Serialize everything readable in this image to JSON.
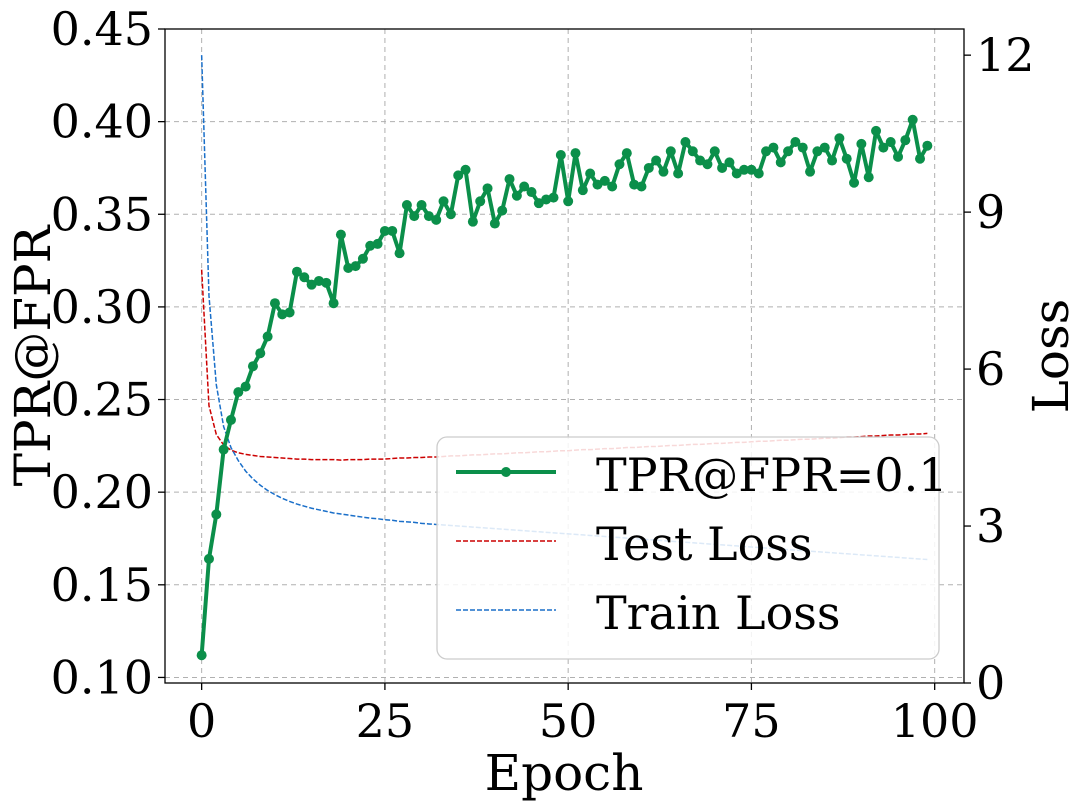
{
  "chart_data": {
    "type": "line",
    "title": "",
    "xlabel": "Epoch",
    "ylabel": "TPR@FPR",
    "y2label": "Loss",
    "xlim": [
      -5,
      104
    ],
    "ylim": [
      0.097,
      0.45
    ],
    "y2lim": [
      0,
      12.5
    ],
    "grid": true,
    "legend_location": "lower-right",
    "x_ticks": [
      0,
      25,
      50,
      75,
      100
    ],
    "x_tick_labels": [
      "0",
      "25",
      "50",
      "75",
      "100"
    ],
    "y_ticks": [
      0.1,
      0.15,
      0.2,
      0.25,
      0.3,
      0.35,
      0.4,
      0.45
    ],
    "y_tick_labels": [
      "0.10",
      "0.15",
      "0.20",
      "0.25",
      "0.30",
      "0.35",
      "0.40",
      "0.45"
    ],
    "y2_ticks": [
      0,
      3,
      6,
      9,
      12
    ],
    "y2_tick_labels": [
      "0",
      "3",
      "6",
      "9",
      "12"
    ],
    "series": [
      {
        "name": "TPR@FPR=0.1",
        "axis": "left",
        "color": "#0b8f4a",
        "style": "solid-marker",
        "x_start": 0,
        "values": [
          0.112,
          0.164,
          0.188,
          0.223,
          0.239,
          0.254,
          0.257,
          0.268,
          0.275,
          0.284,
          0.302,
          0.296,
          0.297,
          0.319,
          0.316,
          0.312,
          0.314,
          0.313,
          0.302,
          0.339,
          0.321,
          0.322,
          0.326,
          0.333,
          0.334,
          0.341,
          0.341,
          0.329,
          0.355,
          0.349,
          0.355,
          0.349,
          0.347,
          0.357,
          0.35,
          0.371,
          0.374,
          0.346,
          0.357,
          0.364,
          0.345,
          0.352,
          0.369,
          0.36,
          0.365,
          0.362,
          0.356,
          0.358,
          0.359,
          0.382,
          0.357,
          0.383,
          0.363,
          0.372,
          0.366,
          0.368,
          0.365,
          0.377,
          0.383,
          0.366,
          0.365,
          0.375,
          0.379,
          0.373,
          0.384,
          0.372,
          0.389,
          0.384,
          0.379,
          0.377,
          0.384,
          0.375,
          0.378,
          0.372,
          0.374,
          0.374,
          0.372,
          0.384,
          0.386,
          0.378,
          0.384,
          0.389,
          0.386,
          0.373,
          0.384,
          0.386,
          0.379,
          0.391,
          0.38,
          0.367,
          0.388,
          0.37,
          0.395,
          0.386,
          0.389,
          0.381,
          0.39,
          0.401,
          0.38,
          0.387
        ]
      },
      {
        "name": "Test Loss",
        "axis": "right",
        "color": "#cc0000",
        "style": "dashed",
        "x_start": 0,
        "values": [
          7.9,
          5.3,
          4.75,
          4.55,
          4.45,
          4.4,
          4.37,
          4.35,
          4.33,
          4.32,
          4.31,
          4.3,
          4.29,
          4.28,
          4.28,
          4.27,
          4.27,
          4.27,
          4.27,
          4.26,
          4.27,
          4.27,
          4.27,
          4.28,
          4.28,
          4.28,
          4.29,
          4.3,
          4.3,
          4.31,
          4.31,
          4.32,
          4.32,
          4.33,
          4.34,
          4.34,
          4.35,
          4.36,
          4.36,
          4.37,
          4.38,
          4.38,
          4.39,
          4.4,
          4.4,
          4.41,
          4.42,
          4.42,
          4.43,
          4.44,
          4.44,
          4.45,
          4.46,
          4.46,
          4.47,
          4.48,
          4.48,
          4.49,
          4.5,
          4.5,
          4.51,
          4.52,
          4.52,
          4.53,
          4.54,
          4.54,
          4.55,
          4.56,
          4.56,
          4.57,
          4.58,
          4.58,
          4.59,
          4.6,
          4.6,
          4.61,
          4.62,
          4.62,
          4.63,
          4.64,
          4.64,
          4.65,
          4.66,
          4.66,
          4.67,
          4.68,
          4.68,
          4.69,
          4.7,
          4.7,
          4.71,
          4.72,
          4.72,
          4.73,
          4.74,
          4.74,
          4.75,
          4.76,
          4.76,
          4.77
        ]
      },
      {
        "name": "Train Loss",
        "axis": "right",
        "color": "#1a6fc9",
        "style": "dashed",
        "x_start": 0,
        "values": [
          12.0,
          7.4,
          5.7,
          4.9,
          4.5,
          4.25,
          4.05,
          3.9,
          3.78,
          3.68,
          3.6,
          3.53,
          3.47,
          3.42,
          3.38,
          3.34,
          3.31,
          3.28,
          3.25,
          3.23,
          3.21,
          3.19,
          3.17,
          3.15,
          3.14,
          3.12,
          3.11,
          3.09,
          3.08,
          3.07,
          3.05,
          3.04,
          3.03,
          3.02,
          3.01,
          3.0,
          2.99,
          2.98,
          2.97,
          2.96,
          2.95,
          2.94,
          2.93,
          2.92,
          2.91,
          2.9,
          2.89,
          2.88,
          2.87,
          2.86,
          2.85,
          2.84,
          2.83,
          2.82,
          2.81,
          2.8,
          2.79,
          2.78,
          2.77,
          2.76,
          2.75,
          2.74,
          2.73,
          2.72,
          2.71,
          2.7,
          2.69,
          2.68,
          2.67,
          2.66,
          2.65,
          2.64,
          2.63,
          2.62,
          2.61,
          2.6,
          2.59,
          2.58,
          2.57,
          2.56,
          2.55,
          2.54,
          2.53,
          2.52,
          2.51,
          2.5,
          2.49,
          2.48,
          2.47,
          2.46,
          2.45,
          2.44,
          2.43,
          2.42,
          2.41,
          2.4,
          2.39,
          2.38,
          2.37,
          2.36
        ]
      }
    ]
  }
}
